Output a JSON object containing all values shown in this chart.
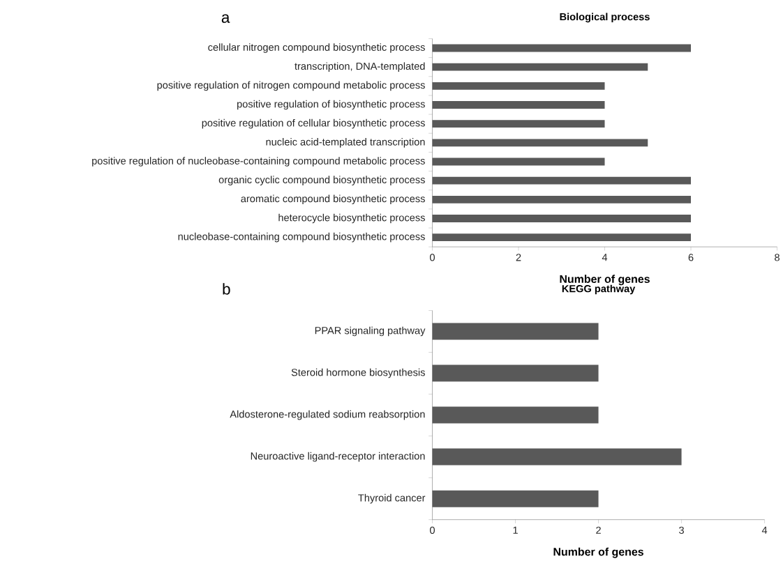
{
  "chart_data": [
    {
      "type": "bar",
      "orientation": "horizontal",
      "title": "Biological process",
      "xlabel": "Number of genes",
      "annotations": [
        "a"
      ],
      "categories": [
        "cellular nitrogen compound biosynthetic process",
        "transcription, DNA-templated",
        "positive regulation of nitrogen compound metabolic process",
        "positive regulation of biosynthetic process",
        "positive regulation of cellular biosynthetic process",
        "nucleic acid-templated transcription",
        "positive regulation of nucleobase-containing compound metabolic process",
        "organic cyclic compound biosynthetic process",
        "aromatic compound biosynthetic process",
        "heterocycle biosynthetic process",
        "nucleobase-containing compound biosynthetic process"
      ],
      "values": [
        6,
        5,
        4,
        4,
        4,
        5,
        4,
        6,
        6,
        6,
        6
      ],
      "color": "#595959",
      "xlim": [
        0,
        8
      ],
      "xticks": [
        0,
        2,
        4,
        6,
        8
      ]
    },
    {
      "type": "bar",
      "orientation": "horizontal",
      "title": "KEGG pathway",
      "xlabel": "Number of genes",
      "annotations": [
        "b"
      ],
      "categories": [
        "PPAR signaling pathway",
        "Steroid hormone biosynthesis",
        "Aldosterone-regulated sodium reabsorption",
        "Neuroactive ligand-receptor interaction",
        "Thyroid cancer"
      ],
      "values": [
        2,
        2,
        2,
        3,
        2
      ],
      "color": "#595959",
      "xlim": [
        0,
        4
      ],
      "xticks": [
        0,
        1,
        2,
        3,
        4
      ]
    }
  ]
}
